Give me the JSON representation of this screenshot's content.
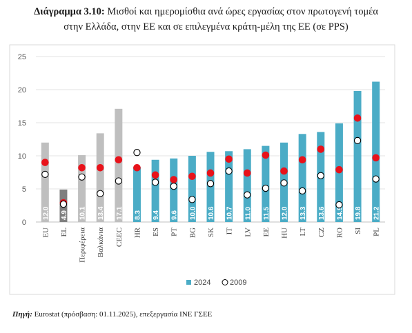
{
  "title_prefix": "Διάγραμμα 3.10:",
  "title_line1": "Μισθοί και ημερομίσθια ανά ώρες εργασίας στον πρωτογενή τομέα",
  "title_line2": "στην Ελλάδα, στην ΕΕ και σε επιλεγμένα κράτη-μέλη της ΕΕ (σε PPS)",
  "source_label": "Πηγή:",
  "source_text": "Eurostat (πρόσβαση: 01.11.2025), επεξεργασία ΙΝΕ ΓΣΕΕ",
  "chart_data": {
    "type": "bar",
    "categories": [
      "EU",
      "EL",
      "Περιφέρεια",
      "Βαλκάνια",
      "CEEC",
      "HR",
      "ES",
      "PT",
      "BG",
      "SK",
      "IT",
      "LV",
      "EE",
      "HU",
      "LT",
      "CZ",
      "RO",
      "SI",
      "PL"
    ],
    "ylim": [
      0,
      25
    ],
    "yticks": [
      0,
      5,
      10,
      15,
      20,
      25
    ],
    "grid": true,
    "legend_position": "bottom",
    "series": [
      {
        "name": "2024",
        "values": [
          12.0,
          4.9,
          10.1,
          13.4,
          17.1,
          8.3,
          9.4,
          9.6,
          10.0,
          10.6,
          10.7,
          11.0,
          11.5,
          12.0,
          13.3,
          13.6,
          14.9,
          19.8,
          21.2
        ],
        "labels": [
          "12.0",
          "4.9",
          "10.1",
          "13.4",
          "17.1",
          "8.3",
          "9.4",
          "9.6",
          "10.0",
          "10.6",
          "10.7",
          "11.0",
          "11.5",
          "12.0",
          "13.3",
          "13.6",
          "14.9",
          "19.8",
          "21.2"
        ]
      },
      {
        "name": "2009",
        "values": [
          7.2,
          2.7,
          6.8,
          4.3,
          6.2,
          10.5,
          6.0,
          5.4,
          3.4,
          5.8,
          7.7,
          4.1,
          5.1,
          5.9,
          4.7,
          7.0,
          2.6,
          12.3,
          6.5
        ]
      }
    ],
    "extra_markers": {
      "values": [
        9.0,
        2.9,
        8.2,
        8.2,
        9.4,
        8.2,
        7.1,
        6.4,
        6.9,
        7.4,
        9.5,
        7.4,
        10.1,
        7.7,
        9.4,
        11.0,
        7.9,
        15.7,
        9.7
      ],
      "color": "#e8121a"
    },
    "colors": {
      "bar_2024": "#4bacc6",
      "bar_eu_group": "#bfbfbf",
      "bar_el": "#7f7f7f",
      "marker_2009_fill": "#ffffff",
      "marker_2009_stroke": "#000000"
    }
  }
}
